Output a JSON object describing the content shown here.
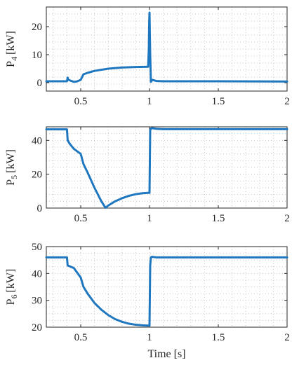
{
  "colors": {
    "series": "#1f77c0",
    "axis": "#262626",
    "grid": "#c8c8c8"
  },
  "chart_data": [
    {
      "type": "line",
      "ylabel": {
        "base": "P",
        "sub": "4",
        "unit": "[kW]"
      },
      "xlim": [
        0.25,
        2.0
      ],
      "ylim": [
        -3,
        27
      ],
      "xticks": [
        0.5,
        1,
        1.5,
        2
      ],
      "xtick_labels": [
        "0.5",
        "1",
        "1.5",
        "2"
      ],
      "yticks": [
        0,
        10,
        20
      ],
      "ytick_labels": [
        "0",
        "10",
        "20"
      ],
      "grid": true,
      "series": [
        {
          "x": [
            0.25,
            0.4,
            0.405,
            0.41,
            0.45,
            0.47,
            0.5,
            0.52,
            0.55,
            0.6,
            0.7,
            0.8,
            0.9,
            0.99,
            0.995,
            0.998,
            1.0,
            1.005,
            1.01,
            1.02,
            1.05,
            1.1,
            1.5,
            2.0
          ],
          "y": [
            0.5,
            0.5,
            1.8,
            1.0,
            0.3,
            0.4,
            1.0,
            3.0,
            3.5,
            4.2,
            5.0,
            5.4,
            5.6,
            5.7,
            12.0,
            22.0,
            25.0,
            10.0,
            0.3,
            1.0,
            0.6,
            0.5,
            0.5,
            0.4
          ]
        }
      ]
    },
    {
      "type": "line",
      "ylabel": {
        "base": "P",
        "sub": "5",
        "unit": "[kW]"
      },
      "xlim": [
        0.25,
        2.0
      ],
      "ylim": [
        0,
        48
      ],
      "xticks": [
        0.5,
        1,
        1.5,
        2
      ],
      "xtick_labels": [
        "0.5",
        "1",
        "1.5",
        "2"
      ],
      "yticks": [
        0,
        20,
        40
      ],
      "ytick_labels": [
        "0",
        "20",
        "40"
      ],
      "grid": true,
      "series": [
        {
          "x": [
            0.25,
            0.4,
            0.405,
            0.42,
            0.45,
            0.5,
            0.52,
            0.55,
            0.6,
            0.65,
            0.68,
            0.7,
            0.75,
            0.8,
            0.85,
            0.9,
            0.95,
            0.99,
            1.0,
            1.005,
            1.01,
            1.02,
            1.05,
            1.1,
            1.5,
            2.0
          ],
          "y": [
            46.5,
            46.5,
            40.0,
            38.0,
            35.0,
            32.0,
            26.0,
            21.0,
            12.0,
            4.0,
            0.2,
            1.5,
            4.0,
            5.8,
            7.2,
            8.2,
            8.8,
            9.0,
            9.0,
            46.0,
            47.0,
            47.2,
            46.8,
            46.6,
            46.6,
            46.6
          ]
        }
      ]
    },
    {
      "type": "line",
      "ylabel": {
        "base": "P",
        "sub": "6",
        "unit": "[kW]"
      },
      "xlabel": "Time [s]",
      "xlim": [
        0.25,
        2.0
      ],
      "ylim": [
        20,
        50
      ],
      "xticks": [
        0.5,
        1,
        1.5,
        2
      ],
      "xtick_labels": [
        "0.5",
        "1",
        "1.5",
        "2"
      ],
      "yticks": [
        20,
        30,
        40,
        50
      ],
      "ytick_labels": [
        "20",
        "30",
        "40",
        "50"
      ],
      "grid": true,
      "series": [
        {
          "x": [
            0.25,
            0.4,
            0.405,
            0.45,
            0.5,
            0.52,
            0.55,
            0.6,
            0.65,
            0.7,
            0.75,
            0.8,
            0.85,
            0.9,
            0.95,
            0.99,
            1.0,
            1.005,
            1.01,
            1.02,
            1.05,
            1.1,
            1.5,
            2.0
          ],
          "y": [
            46.0,
            46.0,
            43.0,
            42.0,
            38.5,
            35.0,
            32.5,
            29.0,
            26.5,
            24.5,
            23.0,
            22.0,
            21.3,
            20.9,
            20.7,
            20.6,
            20.6,
            43.0,
            46.0,
            46.2,
            46.0,
            46.0,
            46.0,
            46.0
          ]
        }
      ]
    }
  ]
}
